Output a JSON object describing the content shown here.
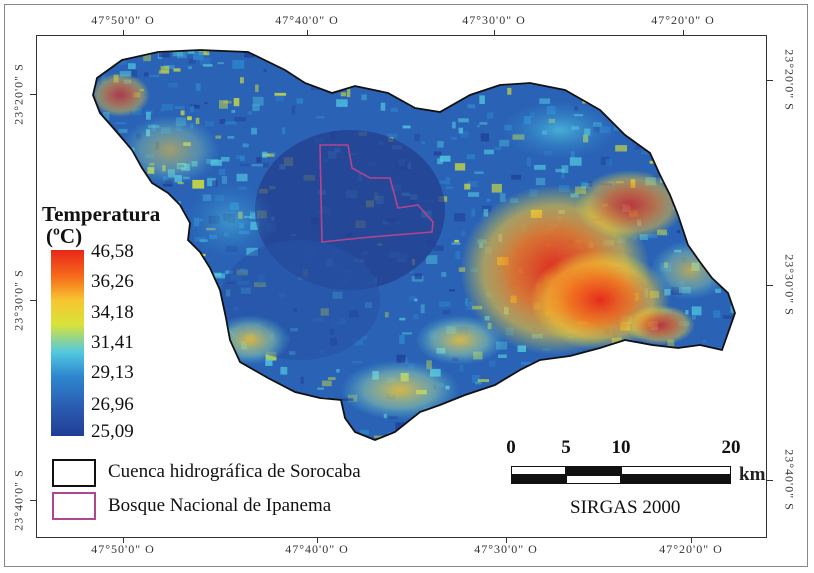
{
  "graticule": {
    "top": [
      "47°50'0\" O",
      "47°40'0\" O",
      "47°30'0\" O",
      "47°20'0\" O"
    ],
    "bottom": [
      "47°50'0\" O",
      "47°40'0\" O",
      "47°30'0\" O",
      "47°20'0\" O"
    ],
    "left": [
      "23°20'0\" S",
      "23°30'0\" S",
      "23°40'0\" S"
    ],
    "right": [
      "23°20'0\" S",
      "23°30'0\" S",
      "23°40'0\" S"
    ]
  },
  "legend": {
    "title_line1": "Temperatura",
    "title_line2": "(ºC)",
    "values": [
      "46,58",
      "36,26",
      "34,18",
      "31,41",
      "29,13",
      "26,96",
      "25,09"
    ]
  },
  "map_legend": {
    "basin_label": "Cuenca hidrográfica de Sorocaba",
    "forest_label": "Bosque Nacional de Ipanema",
    "basin_color": "#111111",
    "forest_color": "#b2458f"
  },
  "scale_bar": {
    "labels": [
      "0",
      "5",
      "10",
      "20"
    ],
    "unit": "km"
  },
  "datum": "SIRGAS 2000",
  "colors": {
    "cold": "#203f96",
    "cool": "#2e86cf",
    "mild": "#52c8e0",
    "warm": "#d8e338",
    "hot": "#f7c531",
    "very_hot": "#e8261a"
  }
}
